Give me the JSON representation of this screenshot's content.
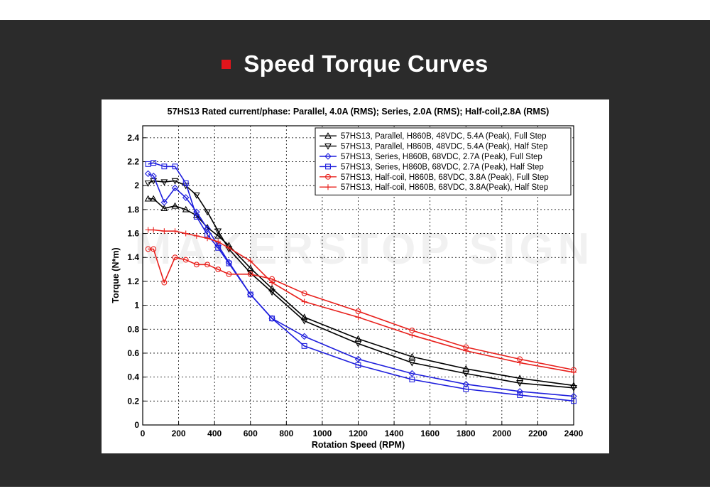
{
  "page": {
    "heading": "Speed Torque Curves",
    "watermark": "MAKERSTOP SIGN"
  },
  "colors": {
    "background_dark": "#2b2b2b",
    "accent_red": "#e3151b",
    "series_black": "#000000",
    "series_blue": "#1f1fdd",
    "series_red": "#e8201c"
  },
  "chart_data": {
    "type": "line",
    "title": "57HS13 Rated current/phase: Parallel, 4.0A (RMS); Series, 2.0A (RMS); Half-coil,2.8A (RMS)",
    "xlabel": "Rotation Speed (RPM)",
    "ylabel": "Torque (N*m)",
    "xlim": [
      0,
      2400
    ],
    "ylim": [
      0,
      2.5
    ],
    "xticks": [
      0,
      200,
      400,
      600,
      800,
      1000,
      1200,
      1400,
      1600,
      1800,
      2000,
      2200,
      2400
    ],
    "yticks": [
      0,
      0.2,
      0.4,
      0.6,
      0.8,
      1,
      1.2,
      1.4,
      1.6,
      1.8,
      2,
      2.2,
      2.4
    ],
    "grid": true,
    "legend_position": "top-right",
    "series": [
      {
        "name": "57HS13, Parallel, H860B, 48VDC, 5.4A (Peak), Full Step",
        "color": "#000000",
        "marker": "triangle-up",
        "x": [
          30,
          60,
          120,
          180,
          240,
          300,
          360,
          420,
          480,
          600,
          720,
          900,
          1200,
          1500,
          1800,
          2100,
          2400
        ],
        "y": [
          1.89,
          1.89,
          1.81,
          1.83,
          1.8,
          1.75,
          1.65,
          1.58,
          1.5,
          1.31,
          1.14,
          0.9,
          0.72,
          0.57,
          0.47,
          0.39,
          0.33
        ]
      },
      {
        "name": "57HS13, Parallel, H860B, 48VDC, 5.4A (Peak), Half Step",
        "color": "#000000",
        "marker": "triangle-down",
        "x": [
          30,
          60,
          120,
          180,
          240,
          300,
          360,
          420,
          480,
          600,
          720,
          900,
          1200,
          1500,
          1800,
          2100,
          2400
        ],
        "y": [
          2.02,
          2.04,
          2.03,
          2.04,
          2.0,
          1.92,
          1.78,
          1.62,
          1.47,
          1.27,
          1.11,
          0.87,
          0.68,
          0.52,
          0.43,
          0.35,
          0.31
        ]
      },
      {
        "name": "57HS13, Series, H860B, 68VDC, 2.7A (Peak), Full Step",
        "color": "#1f1fdd",
        "marker": "diamond",
        "x": [
          30,
          60,
          120,
          180,
          240,
          300,
          360,
          420,
          480,
          600,
          720,
          900,
          1200,
          1500,
          1800,
          2100,
          2400
        ],
        "y": [
          2.1,
          2.08,
          1.86,
          1.98,
          1.9,
          1.78,
          1.64,
          1.5,
          1.36,
          1.09,
          0.89,
          0.74,
          0.55,
          0.43,
          0.34,
          0.28,
          0.24
        ]
      },
      {
        "name": "57HS13, Series, H860B, 68VDC, 2.7A (Peak), Half Step",
        "color": "#1f1fdd",
        "marker": "square",
        "x": [
          30,
          60,
          120,
          180,
          240,
          300,
          360,
          420,
          480,
          600,
          720,
          900,
          1200,
          1500,
          1800,
          2100,
          2400
        ],
        "y": [
          2.18,
          2.19,
          2.16,
          2.16,
          2.02,
          1.74,
          1.59,
          1.48,
          1.35,
          1.09,
          0.89,
          0.66,
          0.5,
          0.38,
          0.3,
          0.25,
          0.2
        ]
      },
      {
        "name": "57HS13, Half-coil, H860B, 68VDC, 3.8A (Peak), Full Step",
        "color": "#e8201c",
        "marker": "circle",
        "x": [
          30,
          60,
          120,
          180,
          240,
          300,
          360,
          420,
          480,
          600,
          720,
          900,
          1200,
          1500,
          1800,
          2100,
          2400
        ],
        "y": [
          1.47,
          1.47,
          1.19,
          1.4,
          1.38,
          1.34,
          1.34,
          1.3,
          1.26,
          1.26,
          1.22,
          1.1,
          0.95,
          0.79,
          0.65,
          0.55,
          0.46
        ]
      },
      {
        "name": "57HS13, Half-coil, H860B, 68VDC, 3.8A(Peak), Half Step",
        "color": "#e8201c",
        "marker": "plus",
        "x": [
          30,
          60,
          120,
          180,
          240,
          300,
          360,
          420,
          480,
          600,
          720,
          900,
          1200,
          1500,
          1800,
          2100,
          2400
        ],
        "y": [
          1.63,
          1.63,
          1.62,
          1.62,
          1.6,
          1.58,
          1.56,
          1.53,
          1.48,
          1.37,
          1.19,
          1.03,
          0.9,
          0.75,
          0.62,
          0.52,
          0.44
        ]
      }
    ]
  }
}
